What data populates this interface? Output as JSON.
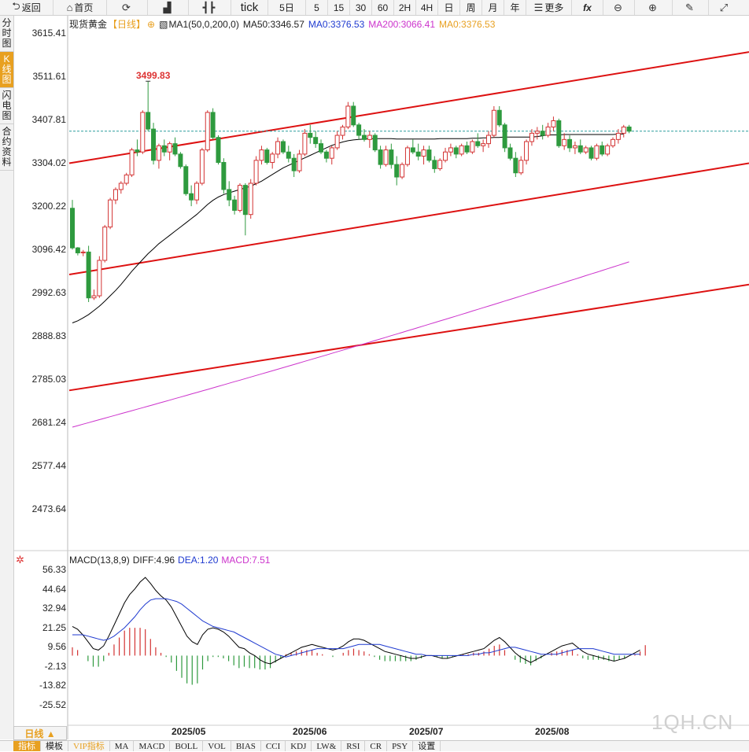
{
  "toolbar": {
    "back_label": "返回",
    "home_label": "首页",
    "tick_label": "tick",
    "periods": [
      "5日",
      "5",
      "15",
      "30",
      "60",
      "2H",
      "4H",
      "日",
      "周",
      "月",
      "年"
    ],
    "more_label": "更多"
  },
  "sidebar": {
    "tabs": [
      "分时图",
      "K线图",
      "闪电图",
      "合约资料"
    ],
    "active_index": 1
  },
  "legend": {
    "instrument": "现货黄金",
    "period": "【日线】",
    "ma1": "MA1(50,0,200,0)",
    "ma50": "MA50:3346.57",
    "ma0_blue": "MA0:3376.53",
    "ma200": "MA200:3066.41",
    "ma0_orange": "MA0:3376.53"
  },
  "macd_legend": {
    "name": "MACD(13,8,9)",
    "diff": "DIFF:4.96",
    "dea": "DEA:1.20",
    "macd": "MACD:7.51"
  },
  "price_axis": [
    "3615.41",
    "3511.61",
    "3407.81",
    "3304.02",
    "3200.22",
    "3096.42",
    "2992.63",
    "2888.83",
    "2785.03",
    "2681.24",
    "2577.44",
    "2473.64"
  ],
  "macd_axis": [
    "56.33",
    "44.64",
    "32.94",
    "21.25",
    "9.56",
    "-2.13",
    "-13.82",
    "-25.52"
  ],
  "date_labels": [
    "2025/05",
    "2025/06",
    "2025/07",
    "2025/08"
  ],
  "peak_label": "3499.83",
  "period_tab": "日线 ▲",
  "bottom_tabs": [
    "指标",
    "模板",
    "VIP指标",
    "MA",
    "MACD",
    "BOLL",
    "VOL",
    "BIAS",
    "CCI",
    "KDJ",
    "LW&",
    "RSI",
    "CR",
    "PSY",
    "设置"
  ],
  "watermark": "1QH.CN",
  "colors": {
    "up": "#d33333",
    "down": "#2e9a3e",
    "ma50": "#000000",
    "ma200": "#cc33cc",
    "channel": "#dd1111",
    "dea_blue": "#1f3ad0",
    "accent": "#e8a020"
  },
  "chart_data": [
    {
      "type": "candlestick",
      "title": "现货黄金 日线",
      "ylim": [
        2430,
        3640
      ],
      "candles": [
        [
          3195,
          3215,
          3096,
          3100
        ],
        [
          3100,
          3102,
          3082,
          3088
        ],
        [
          3088,
          3095,
          3080,
          3090
        ],
        [
          3090,
          3105,
          2970,
          2980
        ],
        [
          2980,
          3000,
          2975,
          2985
        ],
        [
          2985,
          3080,
          2980,
          3070
        ],
        [
          3070,
          3155,
          3065,
          3150
        ],
        [
          3150,
          3220,
          3145,
          3215
        ],
        [
          3215,
          3245,
          3205,
          3240
        ],
        [
          3240,
          3260,
          3230,
          3255
        ],
        [
          3255,
          3280,
          3250,
          3275
        ],
        [
          3275,
          3340,
          3270,
          3335
        ],
        [
          3335,
          3360,
          3320,
          3330
        ],
        [
          3330,
          3430,
          3325,
          3425
        ],
        [
          3425,
          3499.83,
          3380,
          3385
        ],
        [
          3385,
          3400,
          3300,
          3310
        ],
        [
          3310,
          3350,
          3290,
          3345
        ],
        [
          3345,
          3360,
          3320,
          3330
        ],
        [
          3330,
          3355,
          3310,
          3350
        ],
        [
          3350,
          3365,
          3320,
          3325
        ],
        [
          3325,
          3330,
          3290,
          3295
        ],
        [
          3295,
          3300,
          3225,
          3230
        ],
        [
          3230,
          3250,
          3200,
          3215
        ],
        [
          3215,
          3260,
          3205,
          3255
        ],
        [
          3255,
          3340,
          3250,
          3335
        ],
        [
          3335,
          3430,
          3330,
          3425
        ],
        [
          3425,
          3435,
          3360,
          3365
        ],
        [
          3365,
          3370,
          3300,
          3305
        ],
        [
          3305,
          3315,
          3230,
          3240
        ],
        [
          3240,
          3260,
          3200,
          3215
        ],
        [
          3215,
          3225,
          3180,
          3190
        ],
        [
          3190,
          3255,
          3185,
          3250
        ],
        [
          3250,
          3255,
          3130,
          3180
        ],
        [
          3180,
          3265,
          3170,
          3255
        ],
        [
          3255,
          3320,
          3250,
          3310
        ],
        [
          3310,
          3345,
          3300,
          3335
        ],
        [
          3335,
          3340,
          3300,
          3305
        ],
        [
          3305,
          3330,
          3290,
          3325
        ],
        [
          3325,
          3365,
          3315,
          3355
        ],
        [
          3355,
          3360,
          3325,
          3330
        ],
        [
          3330,
          3345,
          3305,
          3315
        ],
        [
          3315,
          3325,
          3270,
          3285
        ],
        [
          3285,
          3335,
          3280,
          3325
        ],
        [
          3325,
          3385,
          3320,
          3375
        ],
        [
          3375,
          3395,
          3350,
          3365
        ],
        [
          3365,
          3380,
          3340,
          3350
        ],
        [
          3350,
          3360,
          3325,
          3330
        ],
        [
          3330,
          3335,
          3305,
          3315
        ],
        [
          3315,
          3345,
          3300,
          3340
        ],
        [
          3340,
          3380,
          3335,
          3370
        ],
        [
          3370,
          3395,
          3360,
          3390
        ],
        [
          3390,
          3450,
          3385,
          3440
        ],
        [
          3440,
          3450,
          3390,
          3395
        ],
        [
          3395,
          3400,
          3360,
          3370
        ],
        [
          3370,
          3385,
          3355,
          3360
        ],
        [
          3360,
          3380,
          3340,
          3370
        ],
        [
          3370,
          3375,
          3330,
          3335
        ],
        [
          3335,
          3345,
          3290,
          3300
        ],
        [
          3300,
          3345,
          3295,
          3335
        ],
        [
          3335,
          3350,
          3290,
          3300
        ],
        [
          3300,
          3320,
          3250,
          3270
        ],
        [
          3270,
          3305,
          3265,
          3300
        ],
        [
          3300,
          3345,
          3295,
          3340
        ],
        [
          3340,
          3360,
          3325,
          3330
        ],
        [
          3330,
          3350,
          3310,
          3320
        ],
        [
          3320,
          3345,
          3300,
          3335
        ],
        [
          3335,
          3345,
          3305,
          3310
        ],
        [
          3310,
          3320,
          3280,
          3290
        ],
        [
          3290,
          3315,
          3285,
          3310
        ],
        [
          3310,
          3340,
          3305,
          3330
        ],
        [
          3330,
          3350,
          3320,
          3340
        ],
        [
          3340,
          3345,
          3315,
          3325
        ],
        [
          3325,
          3350,
          3320,
          3345
        ],
        [
          3345,
          3355,
          3325,
          3330
        ],
        [
          3330,
          3360,
          3325,
          3355
        ],
        [
          3355,
          3375,
          3340,
          3345
        ],
        [
          3345,
          3360,
          3330,
          3350
        ],
        [
          3350,
          3380,
          3340,
          3370
        ],
        [
          3370,
          3440,
          3365,
          3430
        ],
        [
          3430,
          3440,
          3390,
          3395
        ],
        [
          3395,
          3400,
          3330,
          3340
        ],
        [
          3340,
          3350,
          3310,
          3315
        ],
        [
          3315,
          3330,
          3270,
          3280
        ],
        [
          3280,
          3320,
          3275,
          3310
        ],
        [
          3310,
          3360,
          3300,
          3355
        ],
        [
          3355,
          3385,
          3345,
          3375
        ],
        [
          3375,
          3390,
          3360,
          3380
        ],
        [
          3380,
          3395,
          3360,
          3370
        ],
        [
          3370,
          3400,
          3365,
          3390
        ],
        [
          3390,
          3415,
          3380,
          3405
        ],
        [
          3405,
          3410,
          3340,
          3345
        ],
        [
          3345,
          3375,
          3335,
          3360
        ],
        [
          3360,
          3370,
          3330,
          3340
        ],
        [
          3340,
          3355,
          3325,
          3345
        ],
        [
          3345,
          3360,
          3325,
          3330
        ],
        [
          3330,
          3345,
          3325,
          3340
        ],
        [
          3340,
          3345,
          3310,
          3315
        ],
        [
          3315,
          3350,
          3310,
          3345
        ],
        [
          3345,
          3355,
          3320,
          3325
        ],
        [
          3325,
          3350,
          3320,
          3345
        ],
        [
          3345,
          3365,
          3340,
          3360
        ],
        [
          3360,
          3385,
          3350,
          3375
        ],
        [
          3375,
          3395,
          3365,
          3390
        ],
        [
          3390,
          3395,
          3375,
          3380
        ]
      ],
      "ma50": [
        2920,
        2925,
        2932,
        2940,
        2950,
        2960,
        2972,
        2985,
        2998,
        3012,
        3028,
        3044,
        3058,
        3072,
        3086,
        3098,
        3110,
        3120,
        3130,
        3140,
        3150,
        3160,
        3170,
        3180,
        3192,
        3204,
        3214,
        3222,
        3228,
        3232,
        3236,
        3240,
        3244,
        3248,
        3254,
        3260,
        3268,
        3276,
        3284,
        3292,
        3298,
        3304,
        3310,
        3316,
        3322,
        3328,
        3334,
        3340,
        3346,
        3350,
        3354,
        3357,
        3359,
        3360,
        3361,
        3362,
        3362,
        3362,
        3362,
        3362,
        3361,
        3361,
        3361,
        3361,
        3361,
        3361,
        3361,
        3361,
        3362,
        3362,
        3362,
        3362,
        3362,
        3362,
        3363,
        3363,
        3364,
        3364,
        3365,
        3365,
        3366,
        3366,
        3366,
        3366,
        3366,
        3366,
        3367,
        3369,
        3371,
        3371,
        3371,
        3372,
        3372,
        3372,
        3372,
        3372,
        3372,
        3372,
        3372,
        3372,
        3372,
        3373,
        3373
      ],
      "ma200_range": [
        2670,
        3066.41
      ],
      "channels": [
        [
          [
            0,
            3303
          ],
          [
            1,
            3570
          ]
        ],
        [
          [
            0,
            3036
          ],
          [
            1,
            3303
          ]
        ],
        [
          [
            0,
            2758
          ],
          [
            1,
            3012
          ]
        ]
      ]
    },
    {
      "type": "macd",
      "title": "MACD(13,8,9)",
      "ylim": [
        -36,
        62
      ],
      "diff": [
        21,
        19,
        15,
        10,
        5,
        4,
        7,
        14,
        22,
        30,
        38,
        44,
        48,
        53,
        56.3,
        52,
        47,
        43,
        40,
        35,
        28,
        21,
        14,
        10,
        8,
        15,
        19,
        20,
        19,
        17,
        14,
        10,
        6,
        5,
        2,
        0,
        -3,
        -5,
        -6,
        -4,
        -2,
        0,
        2,
        4,
        6,
        7,
        8,
        7,
        6,
        5,
        4,
        5,
        7,
        10,
        12,
        12,
        11,
        9,
        7,
        5,
        3,
        2,
        1,
        0,
        -1,
        -2,
        -2,
        -1,
        0,
        0,
        -1,
        -2,
        -2,
        -1,
        0,
        1,
        2,
        3,
        4,
        5,
        8,
        11,
        13,
        10,
        6,
        2,
        -1,
        -3,
        -5,
        -3,
        -1,
        1,
        3,
        5,
        7,
        8,
        9,
        6,
        3,
        1,
        0,
        -1,
        -2,
        -3,
        -4,
        -3,
        -2,
        0,
        2,
        4
      ],
      "dea": [
        15,
        15,
        15,
        14,
        13,
        12,
        11,
        12,
        14,
        17,
        20,
        24,
        28,
        33,
        37,
        40,
        41,
        41,
        41,
        40,
        39,
        37,
        34,
        31,
        28,
        25,
        23,
        21,
        20,
        19,
        18,
        17,
        15,
        13,
        11,
        9,
        7,
        5,
        3,
        1,
        0,
        -1,
        0,
        1,
        2,
        3,
        4,
        5,
        5,
        5,
        5,
        5,
        5,
        6,
        7,
        8,
        8,
        8,
        8,
        8,
        7,
        6,
        5,
        4,
        3,
        2,
        1,
        1,
        0,
        0,
        0,
        0,
        0,
        0,
        0,
        0,
        0,
        1,
        1,
        2,
        2,
        3,
        4,
        5,
        6,
        6,
        5,
        4,
        3,
        2,
        1,
        1,
        1,
        1,
        2,
        3,
        4,
        5,
        5,
        5,
        5,
        4,
        3,
        2,
        1,
        1,
        1,
        1,
        1,
        1
      ],
      "hist": [
        6,
        4,
        0,
        -4,
        -8,
        -8,
        -4,
        2,
        8,
        13,
        18,
        20,
        20,
        20,
        19,
        12,
        6,
        2,
        -1,
        -5,
        -11,
        -16,
        -20,
        -21,
        -20,
        -10,
        -4,
        -1,
        -1,
        -2,
        -4,
        -7,
        -9,
        -8,
        -9,
        -9,
        -10,
        -10,
        -9,
        -5,
        -2,
        1,
        2,
        3,
        4,
        4,
        4,
        2,
        1,
        0,
        -1,
        0,
        2,
        4,
        5,
        4,
        3,
        1,
        -1,
        -3,
        -4,
        -4,
        -4,
        -4,
        -4,
        -4,
        -3,
        -2,
        0,
        0,
        -1,
        -2,
        -2,
        -1,
        0,
        1,
        1,
        2,
        2,
        3,
        5,
        7,
        8,
        4,
        0,
        -3,
        -5,
        -6,
        -7,
        -4,
        -2,
        0,
        2,
        3,
        4,
        4,
        4,
        1,
        -2,
        -3,
        -3,
        -3,
        -3,
        -4,
        -4,
        -3,
        -2,
        0,
        1,
        3,
        7.51
      ]
    }
  ]
}
